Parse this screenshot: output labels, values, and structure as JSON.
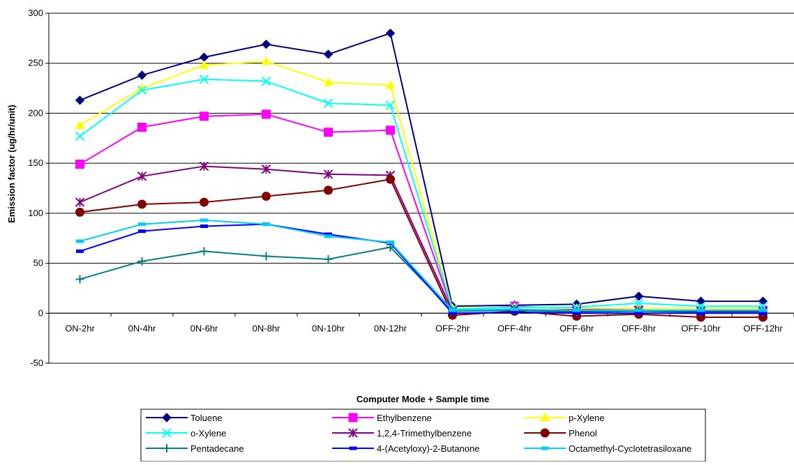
{
  "chart_data": {
    "type": "line",
    "title": "",
    "xlabel": "Computer Mode + Sample time",
    "ylabel": "Emission factor (ug/hr/unit)",
    "ylim": [
      -50,
      300
    ],
    "yticks": [
      -50,
      0,
      50,
      100,
      150,
      200,
      250,
      300
    ],
    "grid": "horizontal",
    "legend_position": "bottom",
    "categories": [
      "ON-2hr",
      "0N-4hr",
      "0N-6hr",
      "0N-8hr",
      "0N-10hr",
      "0N-12hr",
      "OFF-2hr",
      "OFF-4hr",
      "OFF-6hr",
      "OFF-8hr",
      "OFF-10hr",
      "OFF-12hr"
    ],
    "series": [
      {
        "name": "Toluene",
        "color": "#000080",
        "marker": "diamond",
        "values": [
          213,
          238,
          256,
          269,
          259,
          280,
          7,
          8,
          9,
          17,
          12,
          12
        ]
      },
      {
        "name": "Ethylbenzene",
        "color": "#FF00FF",
        "marker": "square",
        "values": [
          149,
          186,
          197,
          199,
          181,
          183,
          3,
          7,
          4,
          3,
          3,
          3
        ]
      },
      {
        "name": "p-Xylene",
        "color": "#FFFF00",
        "marker": "triangle",
        "values": [
          188,
          225,
          248,
          252,
          231,
          228,
          5,
          6,
          5,
          5,
          5,
          5
        ]
      },
      {
        "name": "o-Xylene",
        "color": "#00FFFF",
        "marker": "x",
        "values": [
          177,
          223,
          234,
          232,
          210,
          208,
          4,
          6,
          6,
          10,
          7,
          7
        ]
      },
      {
        "name": "1,2,4-Trimethylbenzene",
        "color": "#800080",
        "marker": "star",
        "values": [
          111,
          137,
          147,
          144,
          139,
          138,
          2,
          4,
          2,
          3,
          2,
          2
        ]
      },
      {
        "name": "Phenol",
        "color": "#800000",
        "marker": "circle",
        "values": [
          101,
          109,
          111,
          117,
          123,
          134,
          -2,
          2,
          -3,
          -1,
          -4,
          -4
        ]
      },
      {
        "name": "Pentadecane",
        "color": "#008080",
        "marker": "plus",
        "values": [
          34,
          52,
          62,
          57,
          54,
          66,
          2,
          3,
          1,
          2,
          1,
          1
        ]
      },
      {
        "name": "4-(Acetyloxy)-2-Butanone",
        "color": "#0000FF",
        "marker": "dash",
        "values": [
          62,
          82,
          87,
          89,
          79,
          70,
          0,
          1,
          0,
          0,
          0,
          0
        ]
      },
      {
        "name": "Octamethyl-Cyclotetrasiloxane",
        "color": "#00CCFF",
        "marker": "dash",
        "values": [
          72,
          89,
          93,
          89,
          77,
          71,
          3,
          4,
          3,
          3,
          3,
          3
        ]
      }
    ]
  }
}
